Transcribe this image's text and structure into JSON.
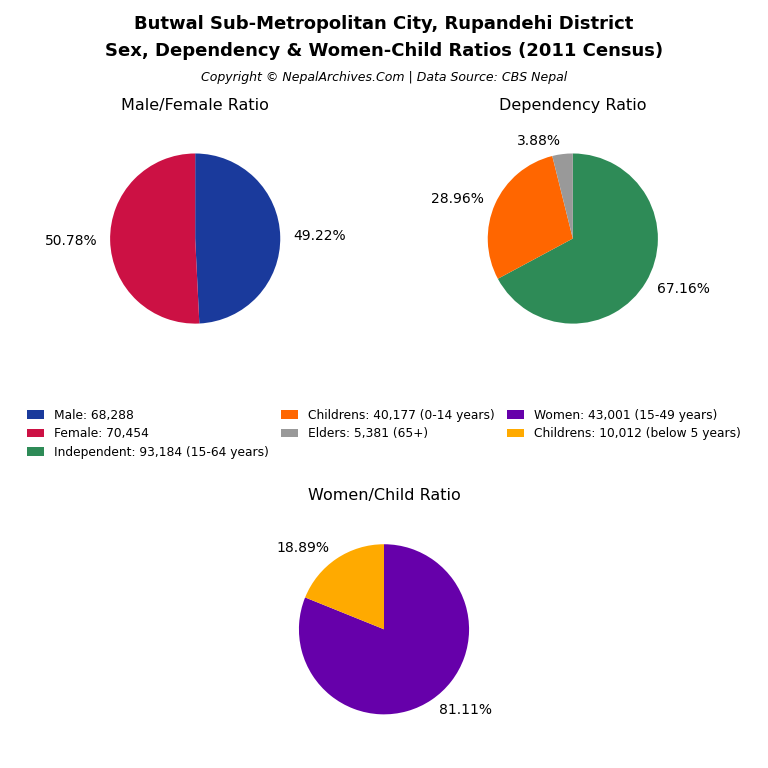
{
  "title": "Butwal Sub-Metropolitan City, Rupandehi District",
  "subtitle": "Sex, Dependency & Women-Child Ratios (2011 Census)",
  "annotations": [
    "Copyright © NepalArchives.Com | Data Source: CBS Nepal"
  ],
  "legend": "center",
  "chart_data": [
    {
      "type": "pie",
      "title": "Male/Female Ratio",
      "categories": [
        "Male: 68,288",
        "Female: 70,454"
      ],
      "values": [
        49.22,
        50.78
      ],
      "value_labels": [
        "49.22%",
        "50.78%"
      ],
      "colors": [
        "#1a3a9c",
        "#cc1144"
      ],
      "data_labels": true
    },
    {
      "type": "pie",
      "title": "Dependency Ratio",
      "categories": [
        "Independent: 93,184 (15-64 years)",
        "Childrens: 40,177 (0-14 years)",
        "Elders: 5,381 (65+)"
      ],
      "values": [
        67.16,
        28.96,
        3.88
      ],
      "value_labels": [
        "67.16%",
        "28.96%",
        "3.88%"
      ],
      "colors": [
        "#2e8b57",
        "#ff6600",
        "#999999"
      ],
      "data_labels": true
    },
    {
      "type": "pie",
      "title": "Women/Child Ratio",
      "categories": [
        "Women: 43,001 (15-49 years)",
        "Childrens: 10,012 (below 5 years)"
      ],
      "values": [
        81.11,
        18.89
      ],
      "value_labels": [
        "81.11%",
        "18.89%"
      ],
      "colors": [
        "#6600aa",
        "#ffaa00"
      ],
      "data_labels": true
    }
  ]
}
